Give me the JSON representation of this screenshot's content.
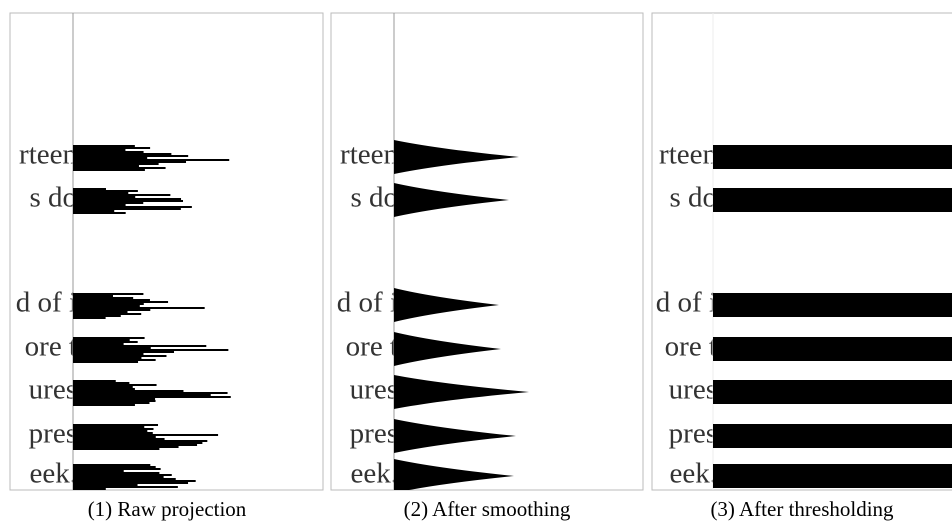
{
  "text_lines": [
    "rteen",
    "s do",
    "d of i",
    "ore t",
    "ures",
    "pres",
    "eek."
  ],
  "panels": [
    {
      "caption": "(1) Raw projection"
    },
    {
      "caption": "(2) After smoothing"
    },
    {
      "caption": "(3) After thresholding"
    }
  ]
}
